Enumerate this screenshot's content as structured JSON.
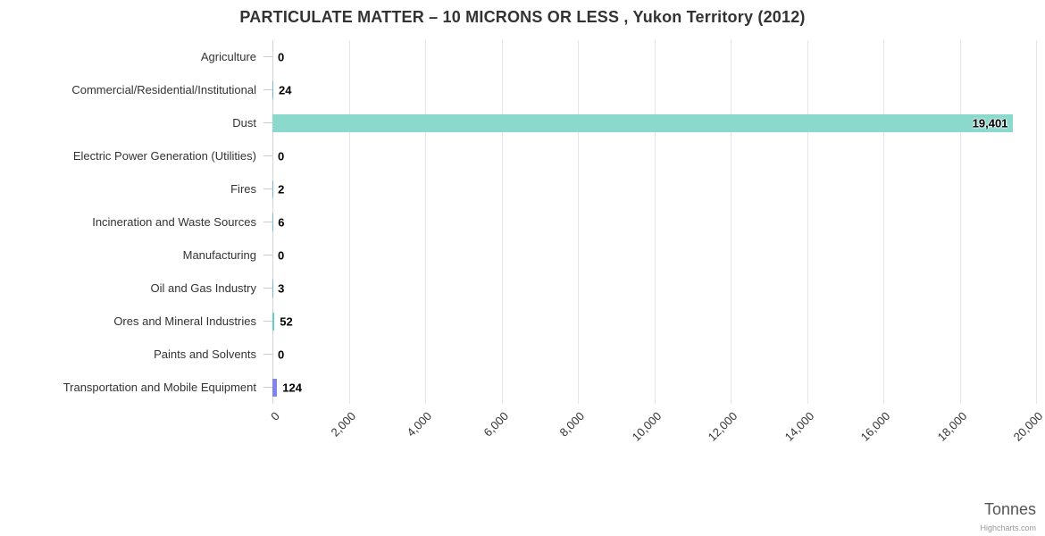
{
  "chart_data": {
    "type": "bar",
    "orientation": "horizontal",
    "title": "PARTICULATE MATTER – 10 MICRONS OR LESS , Yukon Territory (2012)",
    "xlabel": "Tonnes",
    "credit": "Highcharts.com",
    "xlim": [
      0,
      20000
    ],
    "tick_interval": 2000,
    "x_tick_labels": [
      "0",
      "2,000",
      "4,000",
      "6,000",
      "8,000",
      "10,000",
      "12,000",
      "14,000",
      "16,000",
      "18,000",
      "20,000"
    ],
    "categories": [
      "Agriculture",
      "Commercial/Residential/Institutional",
      "Dust",
      "Electric Power Generation (Utilities)",
      "Fires",
      "Incineration and Waste Sources",
      "Manufacturing",
      "Oil and Gas Industry",
      "Ores and Mineral Industries",
      "Paints and Solvents",
      "Transportation and Mobile Equipment"
    ],
    "values": [
      0,
      24,
      19401,
      0,
      2,
      6,
      0,
      3,
      52,
      0,
      124
    ],
    "value_labels": [
      "0",
      "24",
      "19,401",
      "0",
      "2",
      "6",
      "0",
      "3",
      "52",
      "0",
      "124"
    ],
    "point_colors": [
      "#7cb5ec",
      "#7cb5ec",
      "#8bd8cc",
      "#7cb5ec",
      "#7cb5ec",
      "#7cb5ec",
      "#7cb5ec",
      "#7cb5ec",
      "#63cfc3",
      "#7cb5ec",
      "#8085e9"
    ],
    "grid": true,
    "legend": false
  }
}
